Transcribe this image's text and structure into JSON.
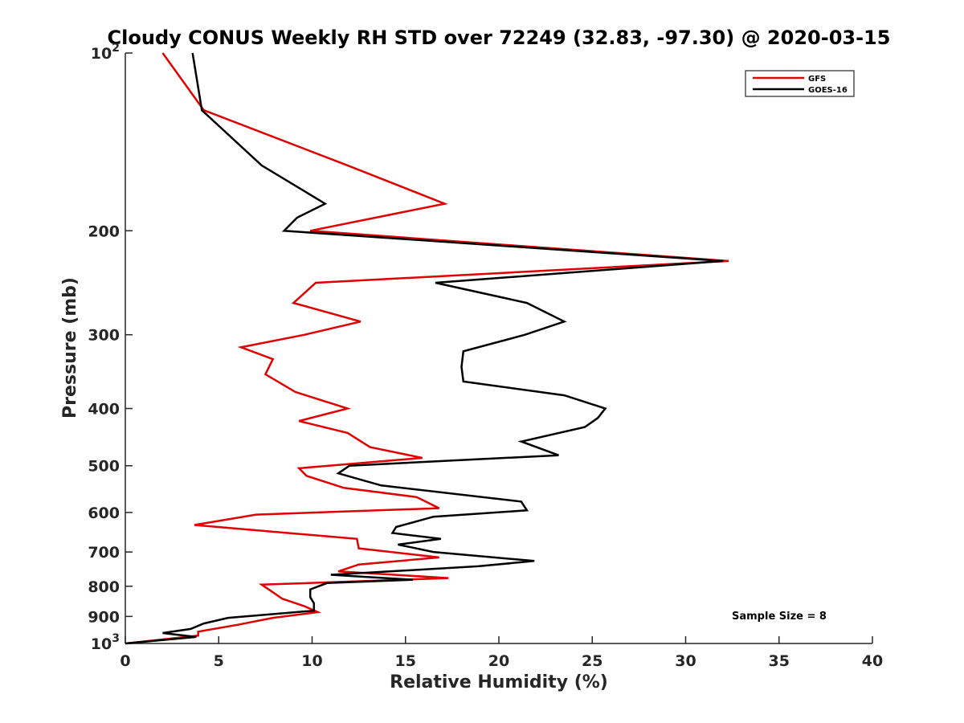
{
  "chart_data": {
    "type": "line",
    "title": "Cloudy CONUS Weekly RH STD over 72249 (32.83, -97.30) @ 2020-03-15",
    "xlabel": "Relative Humidity (%)",
    "ylabel": "Pressure (mb)",
    "xlim": [
      0,
      40
    ],
    "ylim": [
      100,
      1000
    ],
    "yscale": "log",
    "yreversed": true,
    "x_ticks": [
      "0",
      "5",
      "10",
      "15",
      "20",
      "25",
      "30",
      "35",
      "40"
    ],
    "y_ticks": [
      {
        "value": 100,
        "label": "10",
        "sup": "2"
      },
      {
        "value": 200,
        "label": "200"
      },
      {
        "value": 300,
        "label": "300"
      },
      {
        "value": 400,
        "label": "400"
      },
      {
        "value": 500,
        "label": "500"
      },
      {
        "value": 600,
        "label": "600"
      },
      {
        "value": 700,
        "label": "700"
      },
      {
        "value": 800,
        "label": "800"
      },
      {
        "value": 900,
        "label": "900"
      },
      {
        "value": 1000,
        "label": "10",
        "sup": "3"
      }
    ],
    "grid": false,
    "legend_position": "top-right",
    "annotation": "Sample Size = 8",
    "series": [
      {
        "name": "GFS",
        "color": "#e00000",
        "points": [
          [
            2.0,
            100
          ],
          [
            4.2,
            125
          ],
          [
            11.9,
            155
          ],
          [
            17.1,
            180
          ],
          [
            9.9,
            200
          ],
          [
            32.3,
            225
          ],
          [
            10.2,
            245
          ],
          [
            9.0,
            265
          ],
          [
            12.6,
            285
          ],
          [
            9.6,
            300
          ],
          [
            6.2,
            315
          ],
          [
            7.9,
            330
          ],
          [
            7.5,
            350
          ],
          [
            9.1,
            375
          ],
          [
            11.9,
            400
          ],
          [
            9.3,
            420
          ],
          [
            11.9,
            440
          ],
          [
            13.1,
            465
          ],
          [
            15.9,
            485
          ],
          [
            9.3,
            505
          ],
          [
            9.7,
            520
          ],
          [
            11.7,
            545
          ],
          [
            15.6,
            565
          ],
          [
            16.8,
            590
          ],
          [
            7.0,
            605
          ],
          [
            3.7,
            630
          ],
          [
            12.4,
            665
          ],
          [
            12.5,
            690
          ],
          [
            16.8,
            715
          ],
          [
            12.5,
            735
          ],
          [
            11.4,
            755
          ],
          [
            17.3,
            775
          ],
          [
            7.3,
            795
          ],
          [
            7.8,
            815
          ],
          [
            8.4,
            840
          ],
          [
            9.6,
            865
          ],
          [
            10.3,
            885
          ],
          [
            7.9,
            905
          ],
          [
            6.0,
            930
          ],
          [
            3.9,
            955
          ],
          [
            3.9,
            970
          ],
          [
            0.0,
            1000
          ]
        ]
      },
      {
        "name": "GOES-16",
        "color": "#000000",
        "points": [
          [
            3.6,
            100
          ],
          [
            4.1,
            125
          ],
          [
            7.3,
            155
          ],
          [
            10.7,
            180
          ],
          [
            9.2,
            190
          ],
          [
            8.5,
            200
          ],
          [
            32.0,
            225
          ],
          [
            16.6,
            245
          ],
          [
            21.5,
            265
          ],
          [
            23.5,
            285
          ],
          [
            21.4,
            300
          ],
          [
            18.1,
            320
          ],
          [
            18.0,
            340
          ],
          [
            18.1,
            360
          ],
          [
            23.5,
            380
          ],
          [
            25.7,
            400
          ],
          [
            25.3,
            415
          ],
          [
            24.6,
            430
          ],
          [
            21.2,
            455
          ],
          [
            23.2,
            480
          ],
          [
            12.0,
            500
          ],
          [
            11.4,
            515
          ],
          [
            13.7,
            540
          ],
          [
            21.2,
            575
          ],
          [
            21.5,
            595
          ],
          [
            16.5,
            610
          ],
          [
            14.5,
            635
          ],
          [
            14.3,
            650
          ],
          [
            16.9,
            665
          ],
          [
            14.6,
            680
          ],
          [
            16.5,
            700
          ],
          [
            21.9,
            725
          ],
          [
            18.9,
            740
          ],
          [
            11.0,
            765
          ],
          [
            15.4,
            780
          ],
          [
            10.8,
            790
          ],
          [
            9.9,
            810
          ],
          [
            9.9,
            835
          ],
          [
            10.1,
            855
          ],
          [
            10.1,
            880
          ],
          [
            5.5,
            905
          ],
          [
            4.2,
            925
          ],
          [
            3.5,
            945
          ],
          [
            2.0,
            960
          ],
          [
            3.8,
            975
          ],
          [
            0.0,
            1000
          ]
        ]
      }
    ]
  }
}
